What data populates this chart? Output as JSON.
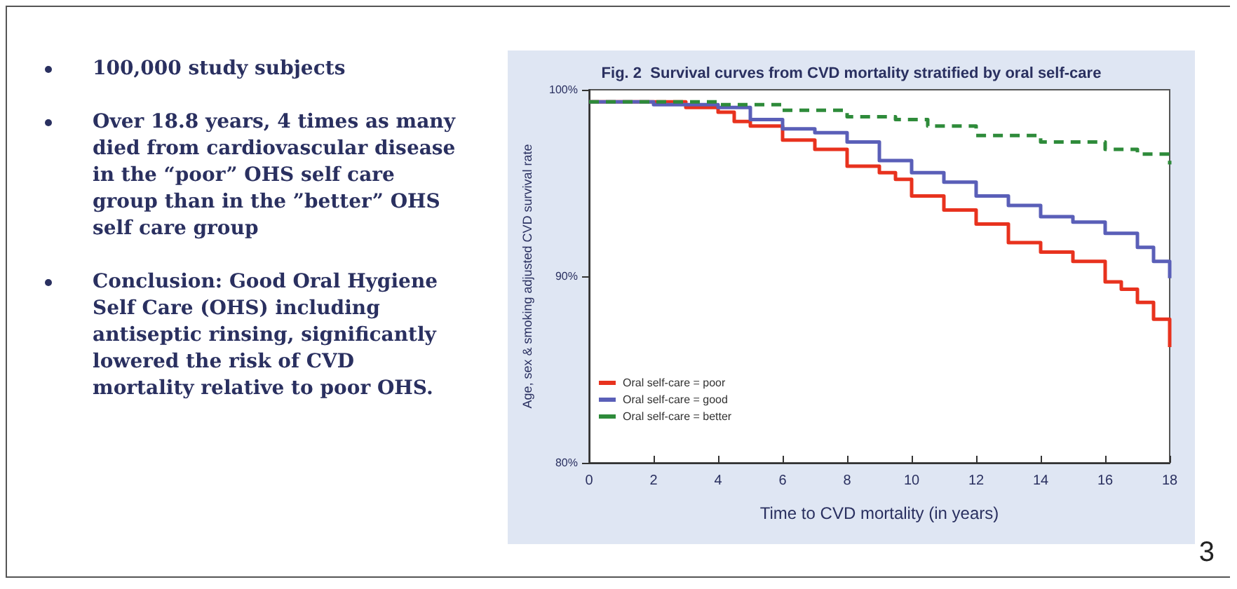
{
  "chart_data": {
    "type": "step",
    "title": "Fig. 2  Survival curves from CVD mortality stratified by oral self-care",
    "xlabel": "Time to CVD mortality (in years)",
    "ylabel": "Age, sex & smoking adjusted CVD survival rate",
    "annotations": [
      "100,000 study subjects",
      "Over 18.8 years, 4 times as many died from cardiovascular disease in the “poor” OHS self care group than in the ”better” OHS self care group",
      "Conclusion: Good Oral Hygiene Self Care (OHS) including antiseptic rinsing, significantly lowered the risk of CVD mortality relative to poor OHS.",
      "3"
    ],
    "series": [
      {
        "name": "Oral self-care = poor",
        "color": "#e8321e",
        "line_style": "solid",
        "x": [
          0,
          3,
          4,
          4.5,
          5,
          6,
          7,
          8,
          9,
          9.5,
          10,
          11,
          12,
          13,
          14,
          15,
          16,
          16.5,
          17,
          17.5,
          18
        ],
        "values": [
          99.35,
          99.05,
          98.8,
          98.3,
          98.05,
          97.3,
          96.8,
          95.9,
          95.55,
          95.2,
          94.3,
          93.55,
          92.8,
          91.8,
          91.3,
          90.8,
          89.7,
          89.3,
          88.6,
          87.7,
          86.2
        ]
      },
      {
        "name": "Oral self-care = good",
        "color": "#5a5fb8",
        "line_style": "solid",
        "x": [
          0,
          2,
          4,
          5,
          6,
          7,
          8,
          9,
          10,
          11,
          12,
          13,
          14,
          15,
          16,
          17,
          17.5,
          18
        ],
        "values": [
          99.35,
          99.2,
          99.05,
          98.4,
          97.9,
          97.7,
          97.2,
          96.2,
          95.55,
          95.05,
          94.3,
          93.8,
          93.2,
          92.9,
          92.3,
          91.55,
          90.8,
          89.9
        ]
      },
      {
        "name": "Oral self-care = better",
        "color": "#2e8b3a",
        "line_style": "dashed",
        "x": [
          0,
          2,
          4,
          6,
          8,
          9.5,
          10.5,
          12,
          14,
          16,
          17,
          18
        ],
        "values": [
          99.35,
          99.35,
          99.2,
          98.9,
          98.55,
          98.4,
          98.05,
          97.55,
          97.2,
          96.8,
          96.55,
          96
        ]
      }
    ],
    "xlim": [
      0,
      18
    ],
    "xticks": [
      0,
      2,
      4,
      6,
      8,
      10,
      12,
      14,
      16,
      18
    ],
    "ylim": [
      80,
      100
    ],
    "yticks": [
      {
        "value": 80,
        "label": "80%"
      },
      {
        "value": 90,
        "label": "90%"
      },
      {
        "value": 100,
        "label": "100%"
      }
    ],
    "grid": false,
    "legend": "bottom left",
    "marker": "none"
  }
}
